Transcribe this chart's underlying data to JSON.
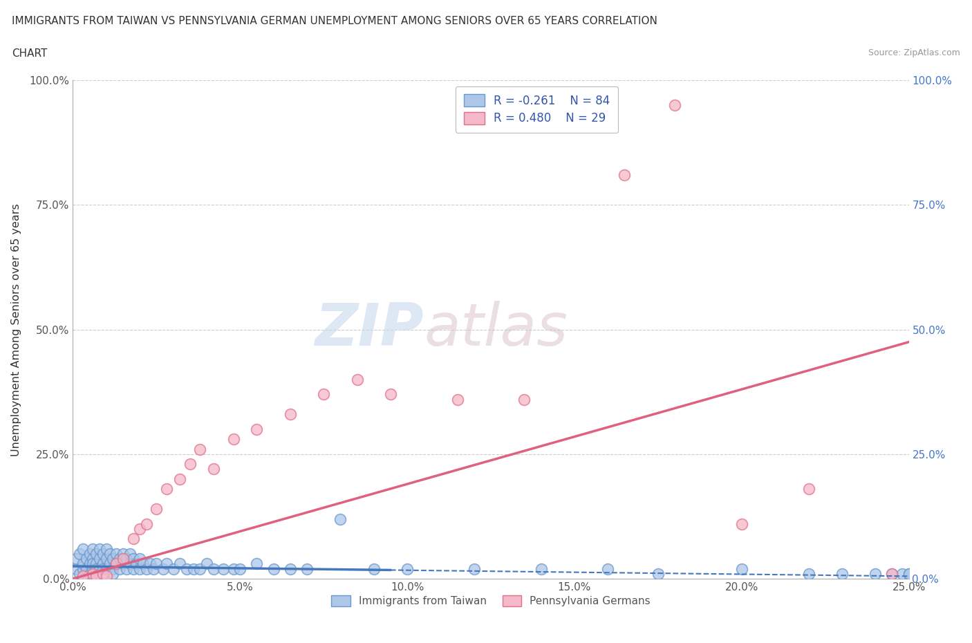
{
  "title_line1": "IMMIGRANTS FROM TAIWAN VS PENNSYLVANIA GERMAN UNEMPLOYMENT AMONG SENIORS OVER 65 YEARS CORRELATION",
  "title_line2": "CHART",
  "source_text": "Source: ZipAtlas.com",
  "ylabel": "Unemployment Among Seniors over 65 years",
  "xlim": [
    0.0,
    0.25
  ],
  "ylim": [
    0.0,
    1.0
  ],
  "xticks": [
    0.0,
    0.05,
    0.1,
    0.15,
    0.2,
    0.25
  ],
  "yticks": [
    0.0,
    0.25,
    0.5,
    0.75,
    1.0
  ],
  "taiwan_color": "#aec6e8",
  "taiwan_edge_color": "#6699cc",
  "pennsylvania_color": "#f4b8c8",
  "pennsylvania_edge_color": "#e0708a",
  "taiwan_R": -0.261,
  "taiwan_N": 84,
  "pennsylvania_R": 0.48,
  "pennsylvania_N": 29,
  "taiwan_line_color": "#4477bb",
  "pennsylvania_line_color": "#e06080",
  "watermark_zip": "ZIP",
  "watermark_atlas": "atlas",
  "legend_taiwan_label": "Immigrants from Taiwan",
  "legend_penn_label": "Pennsylvania Germans",
  "background_color": "#ffffff",
  "grid_color": "#cccccc",
  "taiwan_trend_x0": 0.0,
  "taiwan_trend_x1": 0.25,
  "taiwan_trend_y0": 0.025,
  "taiwan_trend_y1": 0.005,
  "taiwan_trend_dashed_start": 0.095,
  "penn_trend_x0": 0.0,
  "penn_trend_x1": 0.25,
  "penn_trend_y0": 0.0,
  "penn_trend_y1": 0.475,
  "taiwan_x": [
    0.001,
    0.001,
    0.002,
    0.002,
    0.003,
    0.003,
    0.003,
    0.004,
    0.004,
    0.005,
    0.005,
    0.005,
    0.006,
    0.006,
    0.006,
    0.006,
    0.007,
    0.007,
    0.007,
    0.008,
    0.008,
    0.008,
    0.009,
    0.009,
    0.009,
    0.01,
    0.01,
    0.01,
    0.011,
    0.011,
    0.012,
    0.012,
    0.012,
    0.013,
    0.013,
    0.014,
    0.014,
    0.015,
    0.015,
    0.016,
    0.016,
    0.017,
    0.017,
    0.018,
    0.018,
    0.019,
    0.02,
    0.02,
    0.021,
    0.022,
    0.023,
    0.024,
    0.025,
    0.027,
    0.028,
    0.03,
    0.032,
    0.034,
    0.036,
    0.038,
    0.04,
    0.042,
    0.045,
    0.048,
    0.05,
    0.055,
    0.06,
    0.065,
    0.07,
    0.08,
    0.09,
    0.1,
    0.12,
    0.14,
    0.16,
    0.175,
    0.2,
    0.22,
    0.23,
    0.24,
    0.245,
    0.248,
    0.25,
    0.25
  ],
  "taiwan_y": [
    0.02,
    0.04,
    0.01,
    0.05,
    0.02,
    0.06,
    0.03,
    0.04,
    0.02,
    0.03,
    0.05,
    0.01,
    0.04,
    0.02,
    0.06,
    0.03,
    0.03,
    0.05,
    0.02,
    0.04,
    0.02,
    0.06,
    0.03,
    0.05,
    0.02,
    0.04,
    0.02,
    0.06,
    0.03,
    0.05,
    0.02,
    0.04,
    0.01,
    0.03,
    0.05,
    0.02,
    0.04,
    0.03,
    0.05,
    0.02,
    0.04,
    0.03,
    0.05,
    0.02,
    0.04,
    0.03,
    0.02,
    0.04,
    0.03,
    0.02,
    0.03,
    0.02,
    0.03,
    0.02,
    0.03,
    0.02,
    0.03,
    0.02,
    0.02,
    0.02,
    0.03,
    0.02,
    0.02,
    0.02,
    0.02,
    0.03,
    0.02,
    0.02,
    0.02,
    0.12,
    0.02,
    0.02,
    0.02,
    0.02,
    0.02,
    0.01,
    0.02,
    0.01,
    0.01,
    0.01,
    0.01,
    0.01,
    0.01,
    0.01
  ],
  "penn_x": [
    0.003,
    0.006,
    0.007,
    0.009,
    0.01,
    0.013,
    0.015,
    0.018,
    0.02,
    0.022,
    0.025,
    0.028,
    0.032,
    0.035,
    0.038,
    0.042,
    0.048,
    0.055,
    0.065,
    0.075,
    0.085,
    0.095,
    0.115,
    0.135,
    0.165,
    0.18,
    0.2,
    0.22,
    0.245
  ],
  "penn_y": [
    0.005,
    0.01,
    0.005,
    0.01,
    0.005,
    0.03,
    0.04,
    0.08,
    0.1,
    0.11,
    0.14,
    0.18,
    0.2,
    0.23,
    0.26,
    0.22,
    0.28,
    0.3,
    0.33,
    0.37,
    0.4,
    0.37,
    0.36,
    0.36,
    0.81,
    0.95,
    0.11,
    0.18,
    0.01
  ]
}
